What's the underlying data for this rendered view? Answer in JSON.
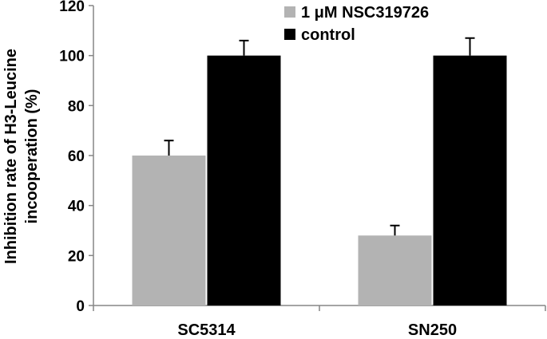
{
  "chart_data": {
    "type": "bar",
    "categories": [
      "SC5314",
      "SN250"
    ],
    "series": [
      {
        "name": "1 μM NSC319726",
        "values": [
          60,
          28
        ],
        "errors": [
          6,
          4
        ],
        "color": "#b3b3b3"
      },
      {
        "name": "control",
        "values": [
          100,
          100
        ],
        "errors": [
          6,
          7
        ],
        "color": "#000000"
      }
    ],
    "ylabel_line1": "Inhibition rate of H3-Leucine",
    "ylabel_line2": "incooperation (%)",
    "ylim": [
      0,
      120
    ],
    "yticks": [
      "0",
      "20",
      "40",
      "60",
      "80",
      "100",
      "120"
    ],
    "grid": false,
    "legend_position": "top-right"
  }
}
